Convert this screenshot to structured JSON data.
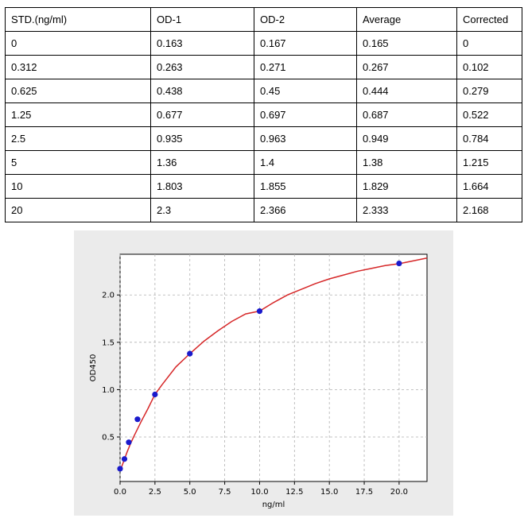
{
  "table": {
    "headers": [
      "STD.(ng/ml)",
      "OD-1",
      "OD-2",
      "Average",
      "Corrected"
    ],
    "rows": [
      [
        "0",
        "0.163",
        "0.167",
        "0.165",
        "0"
      ],
      [
        "0.312",
        "0.263",
        "0.271",
        "0.267",
        "0.102"
      ],
      [
        "0.625",
        "0.438",
        "0.45",
        "0.444",
        "0.279"
      ],
      [
        "1.25",
        "0.677",
        "0.697",
        "0.687",
        "0.522"
      ],
      [
        "2.5",
        "0.935",
        "0.963",
        "0.949",
        "0.784"
      ],
      [
        "5",
        "1.36",
        "1.4",
        "1.38",
        "1.215"
      ],
      [
        "10",
        "1.803",
        "1.855",
        "1.829",
        "1.664"
      ],
      [
        "20",
        "2.3",
        "2.366",
        "2.333",
        "2.168"
      ]
    ]
  },
  "chart_data": {
    "type": "scatter",
    "title": "",
    "xlabel": "ng/ml",
    "ylabel": "OD450",
    "xlim": [
      0,
      22
    ],
    "ylim": [
      0.03,
      2.43
    ],
    "xticks": [
      "0.0",
      "2.5",
      "5.0",
      "7.5",
      "10.0",
      "12.5",
      "15.0",
      "17.5",
      "20.0"
    ],
    "xtick_values": [
      0,
      2.5,
      5,
      7.5,
      10,
      12.5,
      15,
      17.5,
      20
    ],
    "yticks": [
      "0.5",
      "1.0",
      "1.5",
      "2.0"
    ],
    "ytick_values": [
      0.5,
      1.0,
      1.5,
      2.0
    ],
    "grid": true,
    "series": [
      {
        "kind": "points",
        "color": "#1a1acc",
        "x": [
          0,
          0.312,
          0.625,
          1.25,
          2.5,
          5,
          10,
          20
        ],
        "y": [
          0.165,
          0.267,
          0.444,
          0.687,
          0.949,
          1.38,
          1.829,
          2.333
        ]
      },
      {
        "kind": "fit-curve",
        "color": "#d62728",
        "x": [
          0,
          0.25,
          0.5,
          0.75,
          1,
          1.5,
          2,
          2.5,
          3,
          4,
          5,
          6,
          7,
          8,
          9,
          10,
          11,
          12,
          13,
          14,
          15,
          16,
          17,
          18,
          19,
          20,
          21,
          22
        ],
        "y": [
          0.14,
          0.24,
          0.34,
          0.43,
          0.51,
          0.66,
          0.8,
          0.95,
          1.05,
          1.24,
          1.38,
          1.51,
          1.62,
          1.72,
          1.8,
          1.83,
          1.92,
          2.0,
          2.06,
          2.12,
          2.17,
          2.21,
          2.25,
          2.28,
          2.31,
          2.33,
          2.36,
          2.39
        ]
      }
    ]
  }
}
